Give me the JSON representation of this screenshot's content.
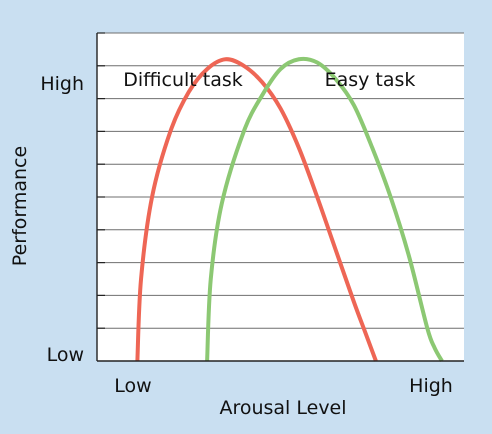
{
  "chart_data": {
    "type": "line",
    "xlabel": "Arousal Level",
    "ylabel": "Performance",
    "x_tick_labels": [
      "Low",
      "High"
    ],
    "y_tick_labels": [
      "Low",
      "High"
    ],
    "xlim": [
      0,
      10
    ],
    "ylim": [
      0,
      10
    ],
    "grid": true,
    "series": [
      {
        "name": "Difficult task",
        "color": "#ee6655",
        "x": [
          1.1,
          1.2,
          1.5,
          2.0,
          2.5,
          3.0,
          3.5,
          4.0,
          4.5,
          5.0,
          5.5,
          6.0,
          6.5,
          7.0,
          7.3,
          7.5,
          7.6
        ],
        "y": [
          0.0,
          2.5,
          5.0,
          7.0,
          8.2,
          8.9,
          9.2,
          9.0,
          8.5,
          7.7,
          6.5,
          5.0,
          3.4,
          1.8,
          0.9,
          0.3,
          0.0
        ]
      },
      {
        "name": "Easy task",
        "color": "#8cc873",
        "x": [
          3.0,
          3.1,
          3.4,
          4.0,
          4.5,
          5.0,
          5.5,
          6.0,
          6.5,
          7.0,
          7.5,
          8.0,
          8.5,
          9.0,
          9.2,
          9.4
        ],
        "y": [
          0.0,
          2.5,
          4.8,
          7.0,
          8.1,
          8.9,
          9.2,
          9.1,
          8.6,
          7.8,
          6.5,
          5.0,
          3.2,
          1.0,
          0.4,
          0.0
        ]
      }
    ]
  }
}
